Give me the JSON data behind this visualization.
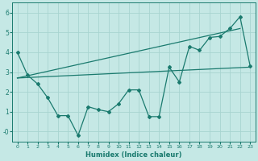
{
  "xlabel": "Humidex (Indice chaleur)",
  "xlim": [
    -0.5,
    23.5
  ],
  "ylim": [
    -0.5,
    6.5
  ],
  "yticks": [
    0,
    1,
    2,
    3,
    4,
    5,
    6
  ],
  "ytick_labels": [
    "-0",
    "1",
    "2",
    "3",
    "4",
    "5",
    "6"
  ],
  "xticks": [
    0,
    1,
    2,
    3,
    4,
    5,
    6,
    7,
    8,
    9,
    10,
    11,
    12,
    13,
    14,
    15,
    16,
    17,
    18,
    19,
    20,
    21,
    22,
    23
  ],
  "background_color": "#c5e8e5",
  "grid_color": "#a8d4d0",
  "line_color": "#1a7a6e",
  "series1_x": [
    0,
    1,
    2,
    3,
    4,
    5,
    6,
    7,
    8,
    9,
    10,
    11,
    12,
    13,
    14,
    15,
    16,
    17,
    18,
    19,
    20,
    21,
    22,
    23
  ],
  "series1_y": [
    4.0,
    2.85,
    2.4,
    1.7,
    0.8,
    0.8,
    -0.2,
    1.25,
    1.1,
    1.0,
    1.4,
    2.1,
    2.1,
    0.75,
    0.75,
    3.25,
    2.5,
    4.3,
    4.1,
    4.75,
    4.8,
    5.2,
    5.8,
    3.3
  ],
  "series2_x": [
    0,
    23
  ],
  "series2_y": [
    2.7,
    3.25
  ],
  "series3_x": [
    0,
    22
  ],
  "series3_y": [
    2.7,
    5.2
  ],
  "marker": "D",
  "marker_size": 2.0,
  "line_width": 0.9
}
